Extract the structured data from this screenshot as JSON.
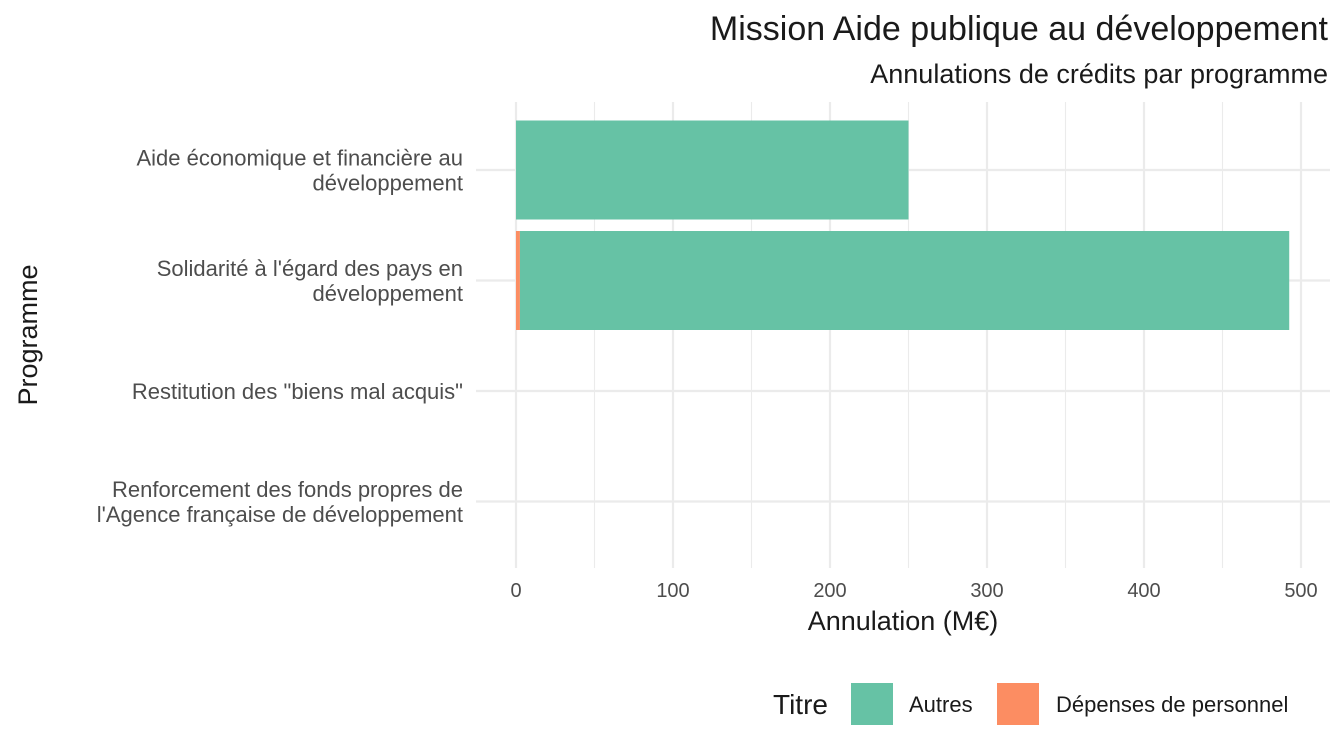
{
  "chart_data": {
    "type": "bar",
    "orientation": "horizontal",
    "stacked": true,
    "title": "Mission Aide publique au développement",
    "subtitle": "Annulations de crédits par programme",
    "xlabel": "Annulation (M€)",
    "ylabel": "Programme",
    "xlim": [
      0,
      500
    ],
    "x_ticks": [
      "0",
      "100",
      "200",
      "300",
      "400",
      "500"
    ],
    "grid": true,
    "legend_title": "Titre",
    "legend_position": "bottom-right",
    "categories": [
      [
        "Aide économique et financière au",
        "développement"
      ],
      [
        "Solidarité à l'égard des pays en",
        "développement"
      ],
      [
        "Restitution des \"biens mal acquis\""
      ],
      [
        "Renforcement des fonds propres de",
        "l'Agence française de développement"
      ]
    ],
    "series": [
      {
        "name": "Dépenses de personnel",
        "color": "#fc8d62",
        "values": [
          0,
          2.5,
          0,
          0
        ]
      },
      {
        "name": "Autres",
        "color": "#66c2a5",
        "values": [
          250,
          490,
          0,
          0
        ]
      }
    ],
    "legend_order": [
      "Autres",
      "Dépenses de personnel"
    ]
  }
}
